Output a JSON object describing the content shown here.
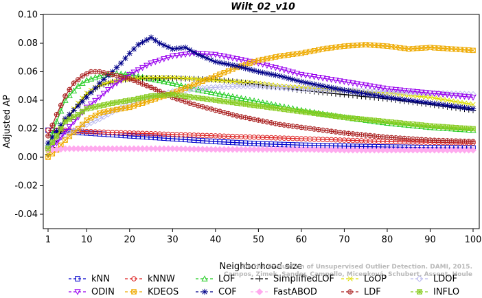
{
  "chart_data": {
    "type": "line",
    "title": "Wilt_02_v10",
    "xlabel": "Neighborhood size",
    "ylabel": "Adjusted AP",
    "xlim": [
      0,
      100
    ],
    "ylim": [
      -0.05,
      0.1
    ],
    "xticks": [
      "1",
      "10",
      "20",
      "30",
      "40",
      "50",
      "60",
      "70",
      "80",
      "90",
      "100"
    ],
    "yticks": [
      "-0.04",
      "-0.02",
      "0.00",
      "0.02",
      "0.04",
      "0.06",
      "0.08",
      "0.10"
    ],
    "grid": false,
    "legend_position": "bottom",
    "watermark": [
      "Campos, Zimek, Sander, Campello, Micenková, Schubert, Assent, Houle",
      "On the Evaluation of Unsupervised Outlier Detection. DAMI, 2015."
    ],
    "series": [
      {
        "name": "kNN",
        "color": "#0000cc",
        "marker": "square",
        "x": [
          1,
          5,
          10,
          20,
          30,
          40,
          50,
          60,
          70,
          80,
          90,
          100
        ],
        "y": [
          0.019,
          0.018,
          0.017,
          0.015,
          0.013,
          0.011,
          0.0095,
          0.0085,
          0.0078,
          0.0072,
          0.0068,
          0.0065
        ]
      },
      {
        "name": "kNNW",
        "color": "#dd2222",
        "marker": "circle",
        "x": [
          1,
          5,
          10,
          20,
          30,
          40,
          50,
          60,
          70,
          80,
          90,
          100
        ],
        "y": [
          0.019,
          0.019,
          0.018,
          0.017,
          0.016,
          0.015,
          0.014,
          0.013,
          0.012,
          0.011,
          0.0105,
          0.01
        ]
      },
      {
        "name": "LOF",
        "color": "#22cc22",
        "marker": "triangle-up",
        "x": [
          1,
          3,
          5,
          8,
          10,
          13,
          16,
          20,
          25,
          30,
          35,
          40,
          45,
          50,
          55,
          60,
          70,
          80,
          90,
          100
        ],
        "y": [
          0.008,
          0.025,
          0.04,
          0.05,
          0.054,
          0.057,
          0.059,
          0.058,
          0.055,
          0.052,
          0.048,
          0.045,
          0.042,
          0.039,
          0.036,
          0.033,
          0.028,
          0.024,
          0.021,
          0.019
        ]
      },
      {
        "name": "SimplifiedLOF",
        "color": "#000000",
        "marker": "plus",
        "x": [
          1,
          3,
          5,
          8,
          10,
          13,
          16,
          20,
          25,
          30,
          35,
          40,
          45,
          50,
          55,
          60,
          70,
          80,
          90,
          100
        ],
        "y": [
          0.002,
          0.012,
          0.025,
          0.037,
          0.044,
          0.05,
          0.053,
          0.055,
          0.0555,
          0.0555,
          0.055,
          0.0545,
          0.053,
          0.051,
          0.049,
          0.047,
          0.044,
          0.041,
          0.037,
          0.033
        ]
      },
      {
        "name": "LoOP",
        "color": "#dddd00",
        "marker": "x",
        "x": [
          1,
          3,
          5,
          8,
          10,
          13,
          16,
          20,
          25,
          30,
          35,
          40,
          45,
          50,
          55,
          60,
          70,
          80,
          90,
          100
        ],
        "y": [
          0.002,
          0.013,
          0.026,
          0.038,
          0.045,
          0.051,
          0.053,
          0.055,
          0.056,
          0.056,
          0.055,
          0.054,
          0.053,
          0.052,
          0.05,
          0.049,
          0.047,
          0.045,
          0.042,
          0.037
        ]
      },
      {
        "name": "LDOF",
        "color": "#bbbbee",
        "marker": "diamond",
        "x": [
          1,
          3,
          5,
          8,
          10,
          13,
          16,
          20,
          25,
          30,
          35,
          40,
          45,
          50,
          55,
          60,
          70,
          80,
          90,
          100
        ],
        "y": [
          0.008,
          0.012,
          0.016,
          0.02,
          0.023,
          0.027,
          0.032,
          0.037,
          0.042,
          0.046,
          0.048,
          0.049,
          0.05,
          0.05,
          0.049,
          0.048,
          0.047,
          0.046,
          0.045,
          0.044
        ]
      },
      {
        "name": "ODIN",
        "color": "#9900ee",
        "marker": "triangle-down",
        "x": [
          1,
          3,
          5,
          8,
          10,
          13,
          16,
          20,
          25,
          30,
          35,
          40,
          45,
          50,
          55,
          60,
          70,
          80,
          90,
          100
        ],
        "y": [
          0.005,
          0.01,
          0.018,
          0.028,
          0.035,
          0.042,
          0.05,
          0.058,
          0.066,
          0.071,
          0.073,
          0.072,
          0.069,
          0.066,
          0.062,
          0.058,
          0.053,
          0.048,
          0.045,
          0.042
        ]
      },
      {
        "name": "KDEOS",
        "color": "#eeaa00",
        "marker": "square-cross",
        "x": [
          1,
          3,
          5,
          8,
          10,
          13,
          16,
          20,
          25,
          30,
          35,
          40,
          45,
          50,
          55,
          60,
          65,
          70,
          75,
          80,
          85,
          90,
          95,
          100
        ],
        "y": [
          0.0,
          0.005,
          0.012,
          0.02,
          0.026,
          0.031,
          0.033,
          0.035,
          0.04,
          0.045,
          0.051,
          0.057,
          0.063,
          0.068,
          0.071,
          0.073,
          0.076,
          0.078,
          0.079,
          0.078,
          0.076,
          0.077,
          0.076,
          0.075
        ]
      },
      {
        "name": "COF",
        "color": "#000088",
        "marker": "asterisk",
        "x": [
          1,
          3,
          5,
          8,
          10,
          13,
          16,
          18,
          20,
          22,
          25,
          27,
          30,
          33,
          36,
          40,
          45,
          50,
          55,
          60,
          70,
          80,
          90,
          100
        ],
        "y": [
          0.01,
          0.018,
          0.027,
          0.036,
          0.042,
          0.052,
          0.06,
          0.066,
          0.073,
          0.079,
          0.084,
          0.08,
          0.076,
          0.077,
          0.072,
          0.067,
          0.064,
          0.06,
          0.057,
          0.053,
          0.047,
          0.042,
          0.038,
          0.034
        ]
      },
      {
        "name": "FastABOD",
        "color": "#ffaaee",
        "marker": "diamond-filled",
        "x": [
          1,
          5,
          10,
          20,
          30,
          40,
          50,
          60,
          70,
          80,
          90,
          100
        ],
        "y": [
          0.005,
          0.006,
          0.006,
          0.006,
          0.006,
          0.0055,
          0.0055,
          0.0055,
          0.005,
          0.005,
          0.005,
          0.005
        ]
      },
      {
        "name": "LDF",
        "color": "#aa2222",
        "marker": "circle-plus",
        "x": [
          1,
          3,
          5,
          7,
          9,
          11,
          13,
          16,
          20,
          25,
          30,
          35,
          40,
          45,
          50,
          55,
          60,
          70,
          80,
          90,
          100
        ],
        "y": [
          0.015,
          0.03,
          0.043,
          0.052,
          0.057,
          0.06,
          0.06,
          0.058,
          0.055,
          0.049,
          0.042,
          0.037,
          0.033,
          0.029,
          0.026,
          0.023,
          0.021,
          0.017,
          0.014,
          0.012,
          0.011
        ]
      },
      {
        "name": "INFLO",
        "color": "#88cc22",
        "marker": "star-box",
        "x": [
          1,
          3,
          5,
          8,
          10,
          13,
          16,
          20,
          25,
          30,
          35,
          40,
          45,
          50,
          55,
          60,
          70,
          80,
          90,
          100
        ],
        "y": [
          0.006,
          0.015,
          0.025,
          0.03,
          0.034,
          0.036,
          0.038,
          0.04,
          0.043,
          0.044,
          0.042,
          0.04,
          0.038,
          0.036,
          0.034,
          0.032,
          0.028,
          0.025,
          0.022,
          0.02
        ]
      }
    ]
  }
}
